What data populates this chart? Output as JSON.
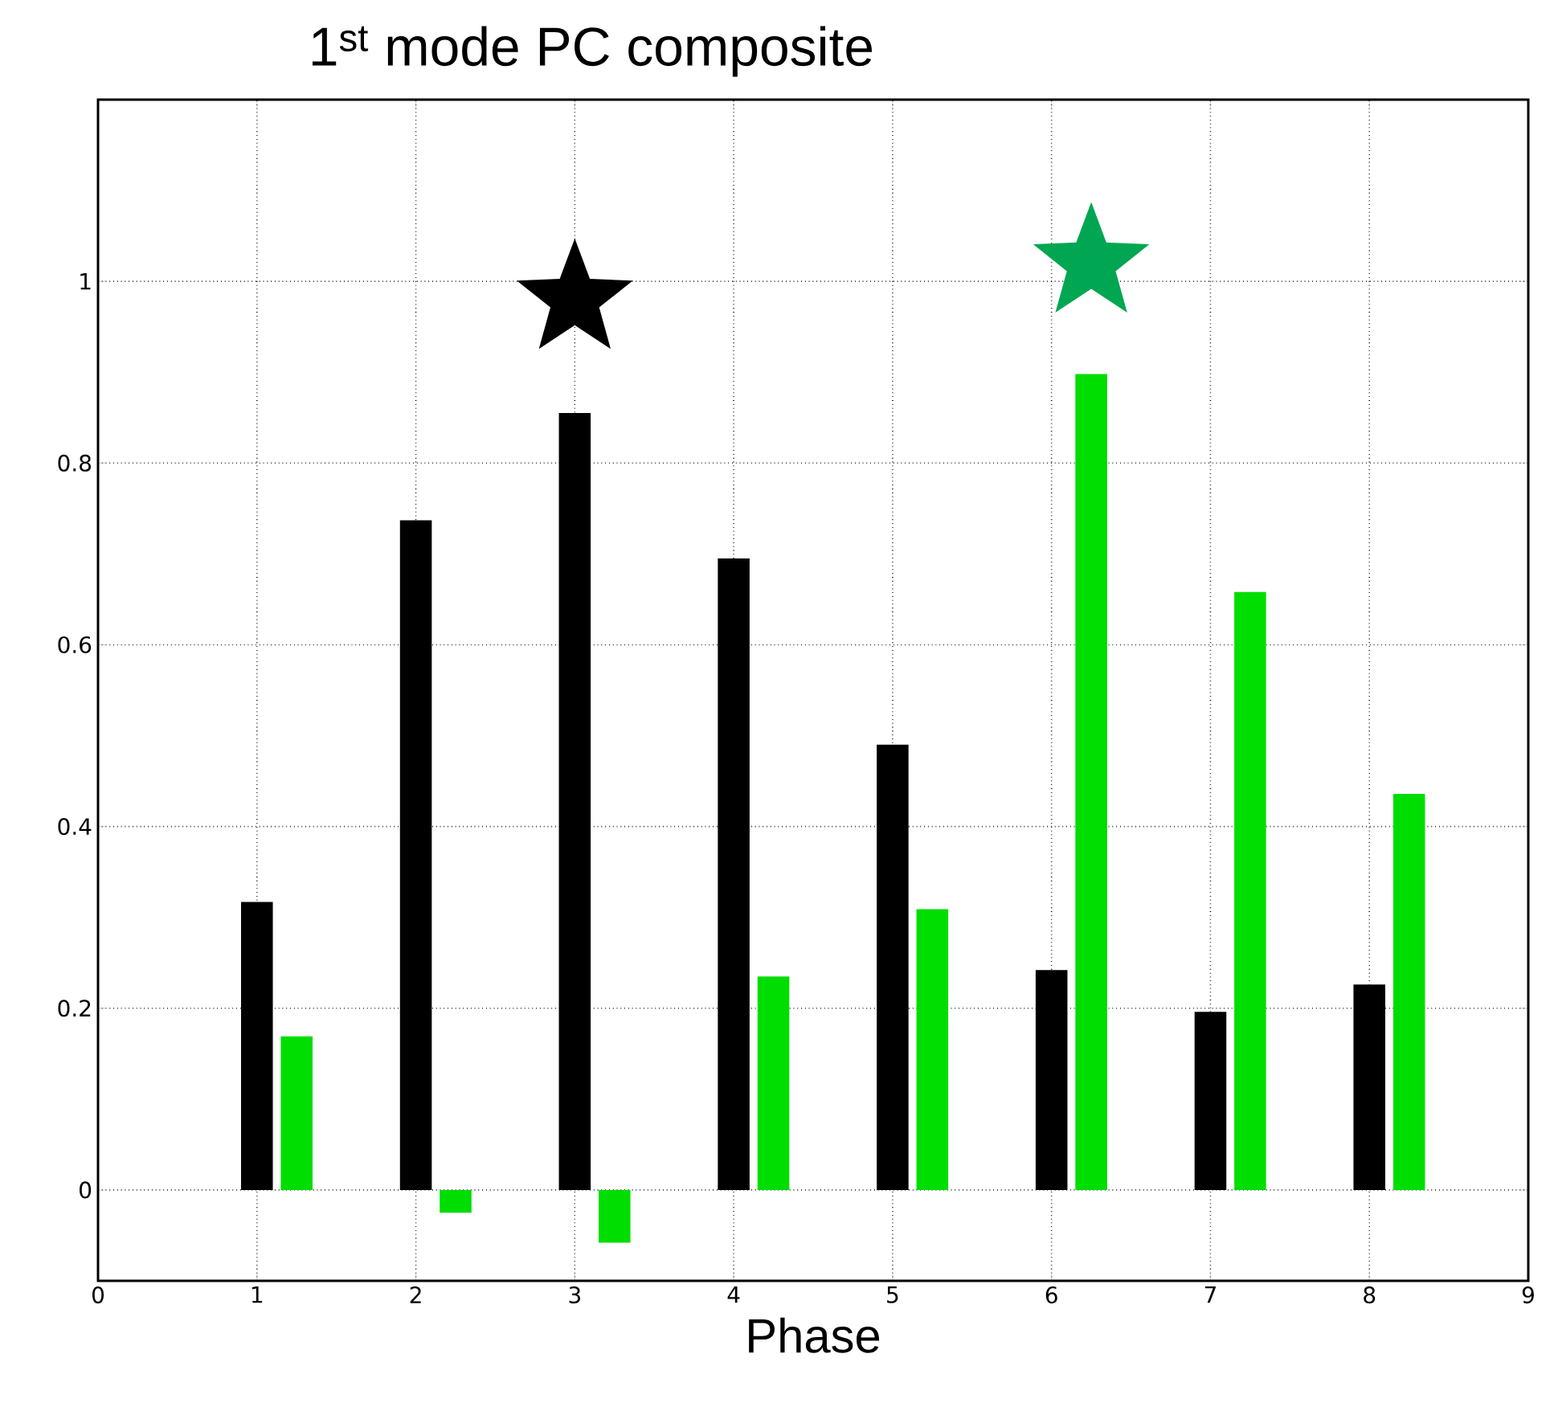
{
  "chart_data": {
    "type": "bar",
    "title": "1$^{st}$ mode PC composite",
    "xlabel": "Phase",
    "xlim": [
      0,
      9
    ],
    "xticks": [
      0,
      1,
      2,
      3,
      4,
      5,
      6,
      7,
      8,
      9
    ],
    "ylim": [
      -0.1,
      1.2
    ],
    "yticks": [
      0,
      0.2,
      0.4,
      0.6,
      0.8,
      1
    ],
    "grid": true,
    "line_style": "dotted",
    "series": [
      {
        "color": "#000000",
        "x": [
          1,
          2,
          3,
          4,
          5,
          6,
          7,
          8
        ],
        "values": [
          0.317,
          0.737,
          0.855,
          0.695,
          0.49,
          0.242,
          0.196,
          0.226
        ]
      },
      {
        "color": "#00dd00",
        "x": [
          1.25,
          2.25,
          3.25,
          4.25,
          5.25,
          6.25,
          7.25,
          8.25
        ],
        "values": [
          0.169,
          -0.025,
          -0.058,
          0.235,
          0.309,
          0.898,
          0.658,
          0.436
        ]
      },
      {
        "type": "scatter",
        "color": "#000000",
        "marker": "star",
        "x": [
          3
        ],
        "values": [
          0.98
        ]
      },
      {
        "type": "scatter",
        "color": "#00a651",
        "marker": "star",
        "x": [
          6.25
        ],
        "values": [
          1.02
        ]
      }
    ]
  }
}
